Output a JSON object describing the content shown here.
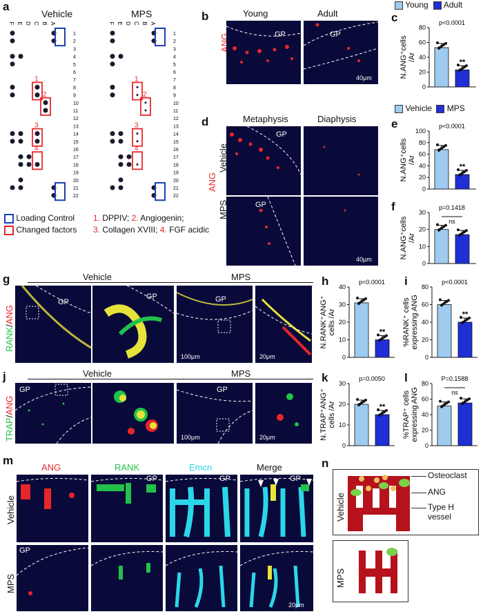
{
  "panels": {
    "a": {
      "label": "a",
      "vehicle": "Vehicle",
      "mps": "MPS",
      "col_letters": [
        "F",
        "E",
        "D",
        "C",
        "B",
        "A"
      ],
      "rows": [
        "1",
        "2",
        "3",
        "4",
        "5",
        "6",
        "7",
        "8",
        "9",
        "10",
        "11",
        "12",
        "13",
        "14",
        "15",
        "16",
        "17",
        "18",
        "19",
        "20",
        "21",
        "22"
      ],
      "box_nums": [
        "1",
        "2",
        "3",
        "4"
      ],
      "legend_loading": "Loading Control",
      "legend_changed": "Changed factors",
      "factors": [
        {
          "n": "1.",
          "name": "DPPIV;"
        },
        {
          "n": "2.",
          "name": "Angiogenin;"
        },
        {
          "n": "3.",
          "name": "Collagen XVIII;"
        },
        {
          "n": "4.",
          "name": "FGF acidic"
        }
      ]
    },
    "b": {
      "label": "b",
      "young": "Young",
      "adult": "Adult",
      "gp": "GP",
      "stain": "ANG",
      "scale": "40μm"
    },
    "c": {
      "label": "c",
      "legend_young": "Young",
      "legend_adult": "Adult",
      "pval": "p<0.0001",
      "sig": "**",
      "ylabel_1": "N.ANG⁺cells",
      "ylabel_2": "/Ar",
      "ticks": [
        "0",
        "20",
        "40",
        "60",
        "80"
      ]
    },
    "d": {
      "label": "d",
      "metaphysis": "Metaphysis",
      "diaphysis": "Diaphysis",
      "gp": "GP",
      "stain": "ANG",
      "vehicle": "Vehicle",
      "mps": "MPS",
      "scale": "40μm"
    },
    "e": {
      "label": "e",
      "legend_vehicle": "Vehicle",
      "legend_mps": "MPS",
      "pval": "p<0.0001",
      "sig": "**",
      "ylabel_1": "N.ANG⁺cells",
      "ylabel_2": "/Ar",
      "ticks": [
        "0",
        "20",
        "40",
        "60",
        "80",
        "100"
      ]
    },
    "f": {
      "label": "f",
      "pval": "p=0.1418",
      "ns": "ns",
      "ylabel_1": "N.ANG⁺cells",
      "ylabel_2": "/Ar",
      "ticks": [
        "0",
        "10",
        "20",
        "30"
      ]
    },
    "g": {
      "label": "g",
      "vehicle": "Vehicle",
      "mps": "MPS",
      "gp": "GP",
      "stain_1": "RANK",
      "stain_2": "ANG",
      "scale_1": "100μm",
      "scale_2": "20μm"
    },
    "h": {
      "label": "h",
      "pval": "p<0.0001",
      "sig": "**",
      "ylabel_1": "N.RANK⁺ANG⁺",
      "ylabel_2": "cells /Ar",
      "ticks": [
        "0",
        "10",
        "20",
        "30",
        "40"
      ]
    },
    "i": {
      "label": "i",
      "pval": "p<0.0001",
      "sig": "**",
      "ylabel_1": "%RANK⁺ cells",
      "ylabel_2": "expressing ANG",
      "ticks": [
        "0",
        "20",
        "40",
        "60",
        "80"
      ]
    },
    "j": {
      "label": "j",
      "vehicle": "Vehicle",
      "mps": "MPS",
      "gp": "GP",
      "stain_1": "TRAP",
      "stain_2": "ANG",
      "scale_1": "100μm",
      "scale_2": "20μm"
    },
    "k": {
      "label": "k",
      "pval": "p=0.0050",
      "sig": "**",
      "ylabel_1": "N.TRAP⁺ANG⁺",
      "ylabel_2": "cells /Ar",
      "ticks": [
        "0",
        "10",
        "20",
        "30"
      ]
    },
    "l": {
      "label": "l",
      "pval": "P=0.1588",
      "ns": "ns",
      "ylabel_1": "%TRAP⁺ cells",
      "ylabel_2": "expressing ANG",
      "ticks": [
        "0",
        "20",
        "40",
        "60",
        "80"
      ]
    },
    "m": {
      "label": "m",
      "ang": "ANG",
      "rank": "RANK",
      "emcn": "Emcn",
      "merge": "Merge",
      "gp": "GP",
      "vehicle": "Vehicle",
      "mps": "MPS",
      "scale": "20μm"
    },
    "n": {
      "label": "n",
      "osteoclast": "Osteoclast",
      "ang": "ANG",
      "typeh_1": "Type H",
      "typeh_2": "vessel",
      "vehicle": "Vehicle",
      "mps": "MPS"
    }
  },
  "colors": {
    "light_bar": "#9ecbef",
    "dark_bar": "#1f2fd6",
    "red": "#e8262a",
    "blue_box": "#1a3fb5",
    "micro_bg": "#0a0a3a"
  },
  "chart_data": [
    {
      "type": "bar",
      "panel": "c",
      "categories": [
        "Young",
        "Adult"
      ],
      "values": [
        53,
        23
      ],
      "ylim": [
        0,
        80
      ],
      "ylabel": "N.ANG⁺cells /Ar"
    },
    {
      "type": "bar",
      "panel": "e",
      "categories": [
        "Vehicle",
        "MPS"
      ],
      "values": [
        68,
        25
      ],
      "ylim": [
        0,
        100
      ],
      "ylabel": "N.ANG⁺cells /Ar"
    },
    {
      "type": "bar",
      "panel": "f",
      "categories": [
        "Vehicle",
        "MPS"
      ],
      "values": [
        20,
        17
      ],
      "ylim": [
        0,
        30
      ],
      "ylabel": "N.ANG⁺cells /Ar"
    },
    {
      "type": "bar",
      "panel": "h",
      "categories": [
        "Vehicle",
        "MPS"
      ],
      "values": [
        31,
        10
      ],
      "ylim": [
        0,
        40
      ],
      "ylabel": "N.RANK⁺ANG⁺ cells /Ar"
    },
    {
      "type": "bar",
      "panel": "i",
      "categories": [
        "Vehicle",
        "MPS"
      ],
      "values": [
        60,
        40
      ],
      "ylim": [
        0,
        80
      ],
      "ylabel": "%RANK⁺ cells expressing ANG"
    },
    {
      "type": "bar",
      "panel": "k",
      "categories": [
        "Vehicle",
        "MPS"
      ],
      "values": [
        20,
        15
      ],
      "ylim": [
        0,
        30
      ],
      "ylabel": "N.TRAP⁺ANG⁺ cells /Ar"
    },
    {
      "type": "bar",
      "panel": "l",
      "categories": [
        "Vehicle",
        "MPS"
      ],
      "values": [
        51,
        55
      ],
      "ylim": [
        0,
        80
      ],
      "ylabel": "%TRAP⁺ cells expressing ANG"
    }
  ]
}
